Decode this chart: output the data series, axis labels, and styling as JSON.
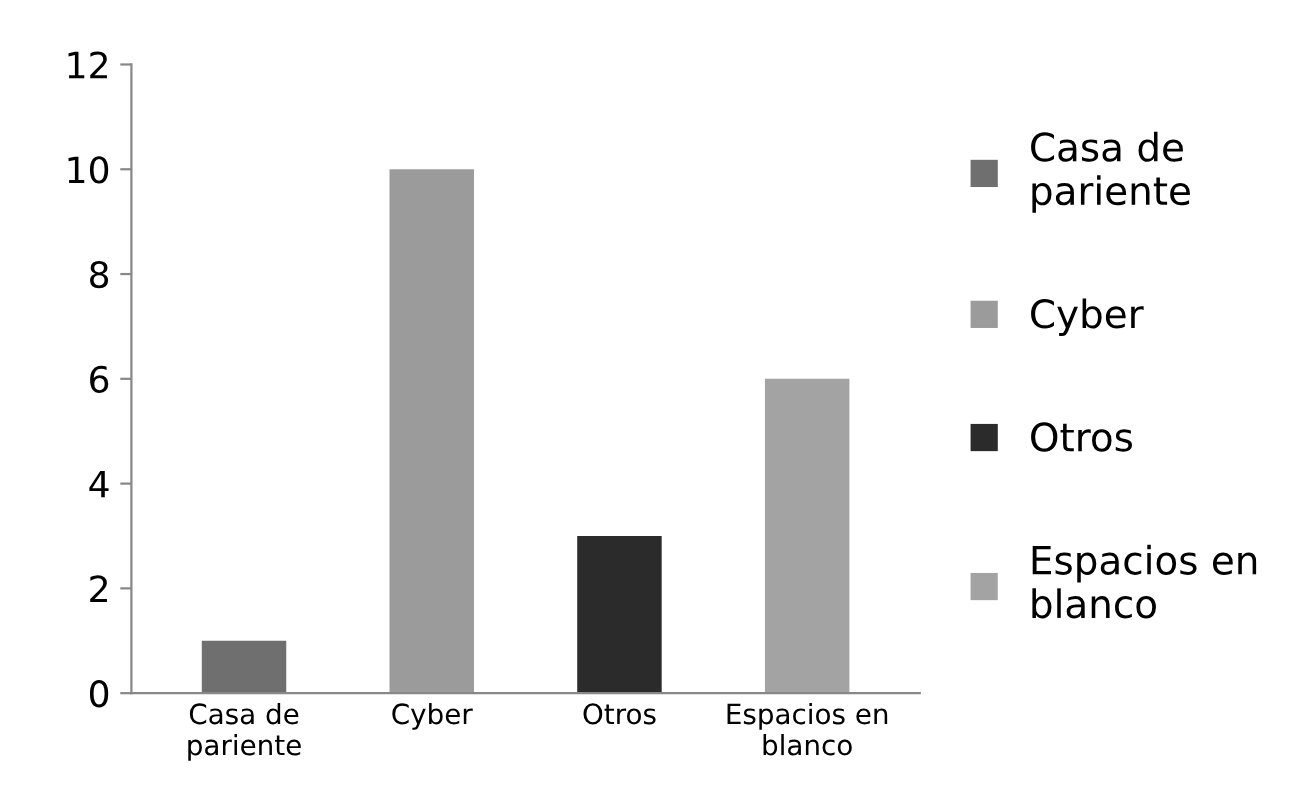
{
  "chart_data": {
    "type": "bar",
    "categories": [
      "Casa de\npariente",
      "Cyber",
      "Otros",
      "Espacios en\nblanco"
    ],
    "series": [
      {
        "name": "Casa de\npariente",
        "color": "#6f6f6f",
        "values": [
          1,
          null,
          null,
          null
        ]
      },
      {
        "name": "Cyber",
        "color": "#9b9b9b",
        "values": [
          null,
          10,
          null,
          null
        ]
      },
      {
        "name": "Otros",
        "color": "#2b2b2b",
        "values": [
          null,
          null,
          3,
          null
        ]
      },
      {
        "name": "Espacios en\nblanco",
        "color": "#a3a3a3",
        "values": [
          null,
          null,
          null,
          6
        ]
      }
    ],
    "stacked": true,
    "ylim": [
      0,
      12
    ],
    "yticks": [
      0,
      2,
      4,
      6,
      8,
      10,
      12
    ],
    "legend": "right",
    "grid": false
  }
}
